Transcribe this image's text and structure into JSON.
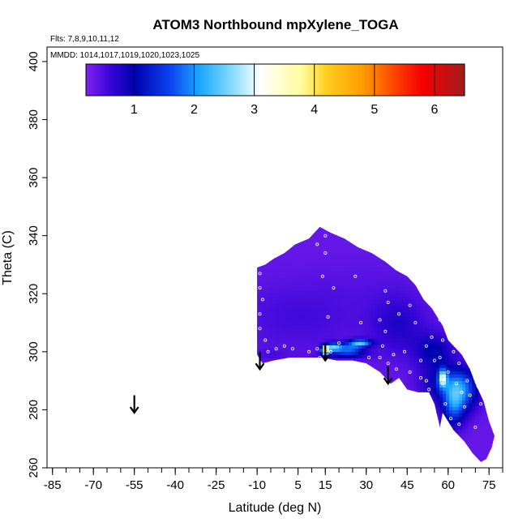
{
  "chart_data": {
    "type": "heatmap",
    "title": "ATOM3 Northbound mpXylene_TOGA",
    "xlabel": "Latitude (deg N)",
    "ylabel": "Theta (C)",
    "xlim": [
      -87,
      80
    ],
    "ylim": [
      260,
      405
    ],
    "x_ticks": [
      -85,
      -70,
      -55,
      -40,
      -25,
      -10,
      5,
      15,
      30,
      45,
      60,
      75
    ],
    "x_minor_step": 5,
    "y_ticks": [
      260,
      280,
      300,
      320,
      340,
      360,
      380,
      400
    ],
    "flights_note": "Flts: 7,8,9,10,11,12",
    "dates_note": "MMDD: 1014,1017,1019,1020,1023,1025",
    "colorbar": {
      "vmin": 0.2,
      "vmax": 6.5,
      "ticks": [
        1,
        2,
        3,
        4,
        5,
        6
      ],
      "stops": [
        {
          "v": 0.2,
          "color": "#7f22f0"
        },
        {
          "v": 0.6,
          "color": "#3a06d8"
        },
        {
          "v": 1.0,
          "color": "#0000b0"
        },
        {
          "v": 1.6,
          "color": "#0b43ee"
        },
        {
          "v": 2.1,
          "color": "#1aa8ff"
        },
        {
          "v": 2.6,
          "color": "#7fd8ff"
        },
        {
          "v": 3.1,
          "color": "#ffffff"
        },
        {
          "v": 3.8,
          "color": "#fffb9a"
        },
        {
          "v": 4.2,
          "color": "#ffcf20"
        },
        {
          "v": 4.8,
          "color": "#ff9c00"
        },
        {
          "v": 5.3,
          "color": "#ff4a00"
        },
        {
          "v": 5.8,
          "color": "#f50000"
        },
        {
          "v": 6.5,
          "color": "#a31c1c"
        }
      ]
    },
    "region_outline": [
      [
        -10,
        329
      ],
      [
        -7,
        330
      ],
      [
        -4,
        332
      ],
      [
        0,
        334
      ],
      [
        4,
        337
      ],
      [
        9,
        339
      ],
      [
        13,
        343
      ],
      [
        17,
        341
      ],
      [
        22,
        339
      ],
      [
        27,
        336
      ],
      [
        32,
        334
      ],
      [
        37,
        331
      ],
      [
        41,
        328
      ],
      [
        45,
        326
      ],
      [
        48,
        323
      ],
      [
        51,
        318
      ],
      [
        54,
        315
      ],
      [
        58,
        309
      ],
      [
        60,
        304
      ],
      [
        65,
        299
      ],
      [
        68,
        294
      ],
      [
        70,
        289
      ],
      [
        73,
        283
      ],
      [
        75,
        276
      ],
      [
        77,
        271
      ],
      [
        76,
        267
      ],
      [
        74,
        263
      ],
      [
        72,
        262
      ],
      [
        69,
        265
      ],
      [
        66,
        269
      ],
      [
        62,
        273
      ],
      [
        60,
        276
      ],
      [
        58,
        279
      ],
      [
        57,
        274
      ],
      [
        55,
        282
      ],
      [
        53,
        286
      ],
      [
        49,
        286
      ],
      [
        45,
        287
      ],
      [
        42,
        291
      ],
      [
        39,
        289
      ],
      [
        35,
        293
      ],
      [
        30,
        296
      ],
      [
        25,
        297
      ],
      [
        19,
        297
      ],
      [
        14,
        298
      ],
      [
        8,
        298
      ],
      [
        2,
        298
      ],
      [
        -4,
        297
      ],
      [
        -8,
        296
      ],
      [
        -10,
        299
      ]
    ],
    "background_value": 0.35,
    "anomalies": [
      {
        "x": 6,
        "y": 312,
        "v": 0.55,
        "rx": 26,
        "ry": 12
      },
      {
        "x": 32,
        "y": 324,
        "v": 0.4,
        "rx": 20,
        "ry": 8
      },
      {
        "x": 42,
        "y": 309,
        "v": 0.75,
        "rx": 10,
        "ry": 10
      },
      {
        "x": 55,
        "y": 300,
        "v": 1.0,
        "rx": 7,
        "ry": 6
      },
      {
        "x": 60,
        "y": 289,
        "v": 1.2,
        "rx": 9,
        "ry": 6
      },
      {
        "x": 65,
        "y": 286,
        "v": 1.4,
        "rx": 6,
        "ry": 7
      },
      {
        "x": 58,
        "y": 291,
        "v": 2.3,
        "rx": 1.5,
        "ry": 3
      },
      {
        "x": 62,
        "y": 281,
        "v": 1.4,
        "rx": 4,
        "ry": 7
      },
      {
        "x": 15,
        "y": 300.5,
        "v": 4.1,
        "rx": 1.4,
        "ry": 1.3
      },
      {
        "x": 18,
        "y": 301.5,
        "v": 2.2,
        "rx": 3,
        "ry": 1.5
      },
      {
        "x": 24,
        "y": 301,
        "v": 1.7,
        "rx": 5,
        "ry": 1.8
      },
      {
        "x": 28,
        "y": 303,
        "v": 2.2,
        "rx": 4,
        "ry": 1.2
      },
      {
        "x": 22,
        "y": 298.8,
        "v": 1.0,
        "rx": 8,
        "ry": 1.3
      },
      {
        "x": -5,
        "y": 299,
        "v": 0.5,
        "rx": 6,
        "ry": 2
      }
    ],
    "observations": [
      [
        -9,
        327
      ],
      [
        -9,
        322
      ],
      [
        -9,
        313
      ],
      [
        -9,
        308
      ],
      [
        -8,
        318
      ],
      [
        -7,
        304
      ],
      [
        -6,
        300
      ],
      [
        -3,
        301
      ],
      [
        0,
        302
      ],
      [
        3,
        301
      ],
      [
        9,
        300
      ],
      [
        12,
        337
      ],
      [
        12,
        301
      ],
      [
        13,
        298
      ],
      [
        15,
        340
      ],
      [
        15,
        334
      ],
      [
        14,
        326
      ],
      [
        16,
        312
      ],
      [
        17,
        300
      ],
      [
        18,
        322
      ],
      [
        20,
        303
      ],
      [
        26,
        326
      ],
      [
        28,
        310
      ],
      [
        31,
        298
      ],
      [
        34,
        291
      ],
      [
        35,
        311
      ],
      [
        35,
        298
      ],
      [
        36,
        302
      ],
      [
        37,
        321
      ],
      [
        37,
        307
      ],
      [
        38,
        317
      ],
      [
        38,
        296
      ],
      [
        40,
        299
      ],
      [
        41,
        294
      ],
      [
        42,
        313
      ],
      [
        42,
        290
      ],
      [
        44,
        300
      ],
      [
        46,
        316
      ],
      [
        46,
        293
      ],
      [
        48,
        310
      ],
      [
        50,
        297
      ],
      [
        50,
        291
      ],
      [
        52,
        290
      ],
      [
        52,
        302
      ],
      [
        53,
        287
      ],
      [
        55,
        297
      ],
      [
        57,
        311
      ],
      [
        57,
        298
      ],
      [
        58,
        289
      ],
      [
        59,
        282
      ],
      [
        60,
        308
      ],
      [
        60,
        293
      ],
      [
        61,
        277
      ],
      [
        62,
        300
      ],
      [
        63,
        307
      ],
      [
        63,
        289
      ],
      [
        64,
        296
      ],
      [
        64,
        275
      ],
      [
        65,
        286
      ],
      [
        66,
        305
      ],
      [
        66,
        281
      ],
      [
        67,
        290
      ],
      [
        68,
        300
      ],
      [
        68,
        285
      ],
      [
        69,
        295
      ],
      [
        70,
        274
      ],
      [
        71,
        288
      ],
      [
        72,
        282
      ],
      [
        58,
        304
      ],
      [
        54,
        305
      ]
    ],
    "arrows": [
      {
        "x": -9,
        "y_top": 300,
        "y_bottom": 294
      },
      {
        "x": -55,
        "y_top": 285,
        "y_bottom": 279
      },
      {
        "x": 15,
        "y_top": 303,
        "y_bottom": 297
      },
      {
        "x": 38,
        "y_top": 295,
        "y_bottom": 289
      }
    ]
  }
}
